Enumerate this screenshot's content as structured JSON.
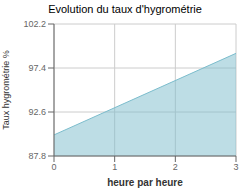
{
  "chart_data": {
    "type": "area",
    "title": "Evolution du taux d'hygrométrie",
    "xlabel": "heure par heure",
    "ylabel": "Taux hygrométrie %",
    "x": [
      0,
      3
    ],
    "values": [
      90.1,
      99.0
    ],
    "xlim": [
      0,
      3
    ],
    "ylim": [
      87.8,
      102.2
    ],
    "xticks": [
      0,
      1,
      2,
      3
    ],
    "yticks": [
      87.8,
      92.6,
      97.4,
      102.2
    ],
    "color": "#7bbccc",
    "grid": true
  }
}
